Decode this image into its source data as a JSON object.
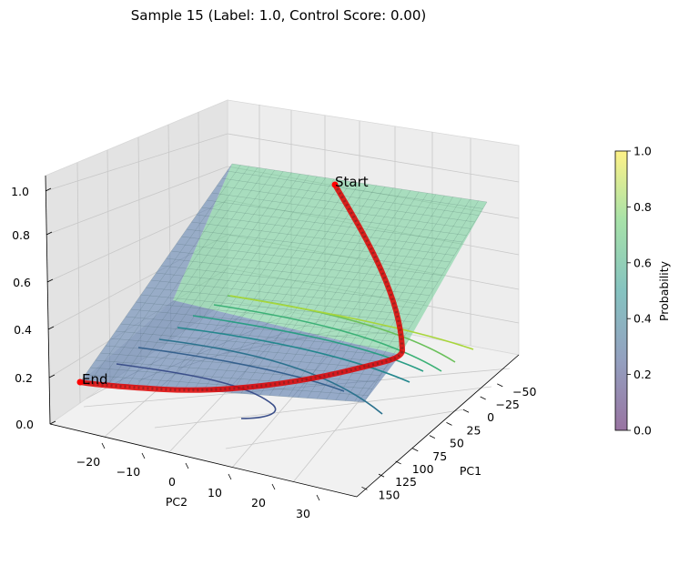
{
  "chart_data": {
    "type": "surface-3d",
    "title": "Sample 15 (Label: 1.0, Control Score: 0.00)",
    "xlabel": "PC1",
    "ylabel": "PC2",
    "zlabel": "",
    "x_ticks": [
      "−50",
      "−25",
      "0",
      "25",
      "50",
      "75",
      "100",
      "125",
      "150"
    ],
    "y_ticks": [
      "−20",
      "−10",
      "0",
      "10",
      "20",
      "30"
    ],
    "z_ticks": [
      "0.0",
      "0.2",
      "0.4",
      "0.6",
      "0.8",
      "1.0"
    ],
    "zlim": [
      0,
      1
    ],
    "colorbar": {
      "label": "Probability",
      "ticks": [
        "0.0",
        "0.2",
        "0.4",
        "0.6",
        "0.8",
        "1.0"
      ],
      "colormap": "viridis",
      "alpha": 0.5
    },
    "trajectory": {
      "color": "#ff0000",
      "start_label": "Start",
      "end_label": "End"
    },
    "contour_levels": [
      0.1,
      0.2,
      0.3,
      0.4,
      0.5,
      0.6,
      0.7,
      0.8
    ]
  }
}
